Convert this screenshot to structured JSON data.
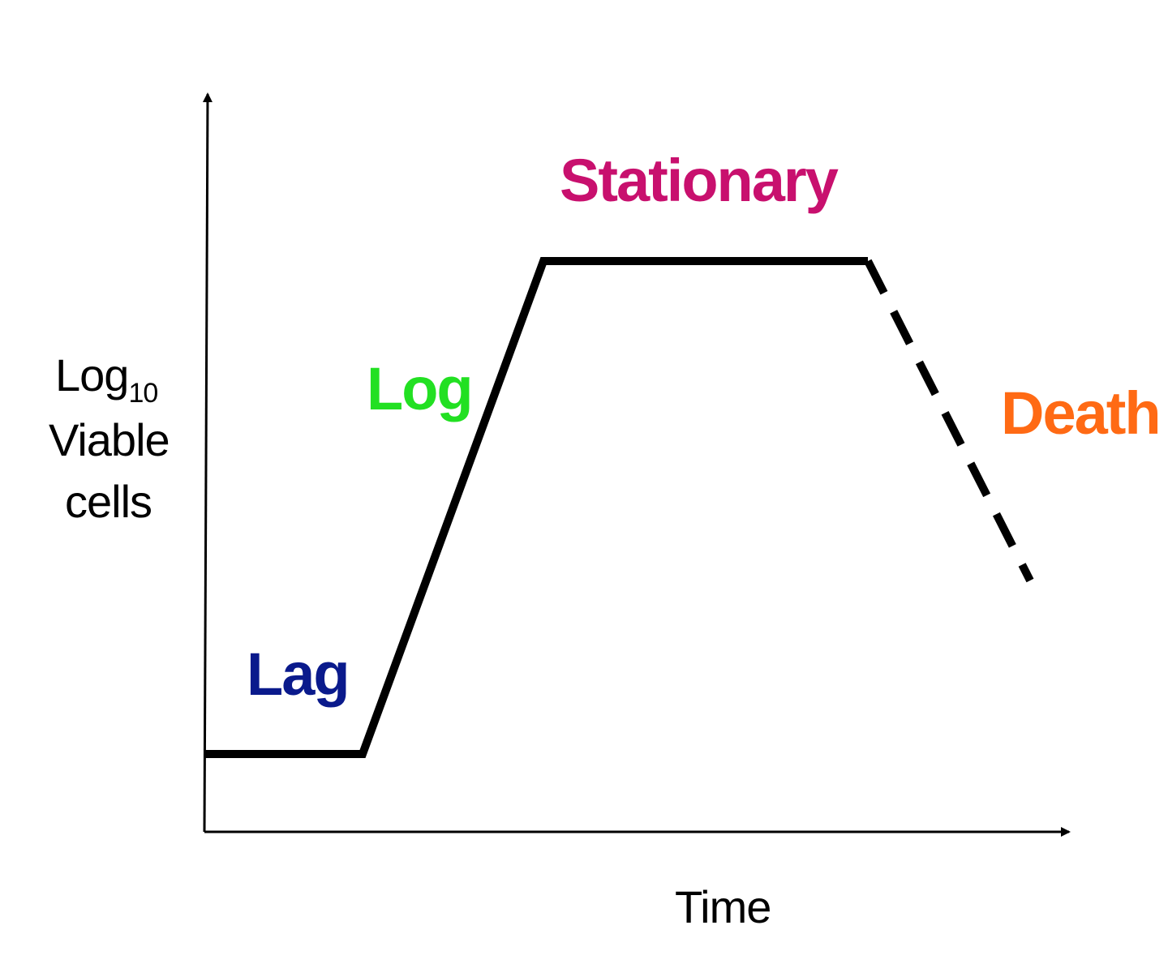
{
  "diagram": {
    "phases": {
      "lag": {
        "label": "Lag",
        "color": "#0a1a8c"
      },
      "log": {
        "label": "Log",
        "color": "#22e022"
      },
      "stationary": {
        "label": "Stationary",
        "color": "#c8106e"
      },
      "death": {
        "label": "Death",
        "color": "#ff6a14"
      }
    },
    "y_axis": {
      "label_line1": "Log",
      "label_subscript": "10",
      "label_line2": "Viable",
      "label_line3": "cells"
    },
    "x_axis": {
      "label": "Time"
    },
    "curve_color": "#000000",
    "death_segment_style": "dashed"
  }
}
